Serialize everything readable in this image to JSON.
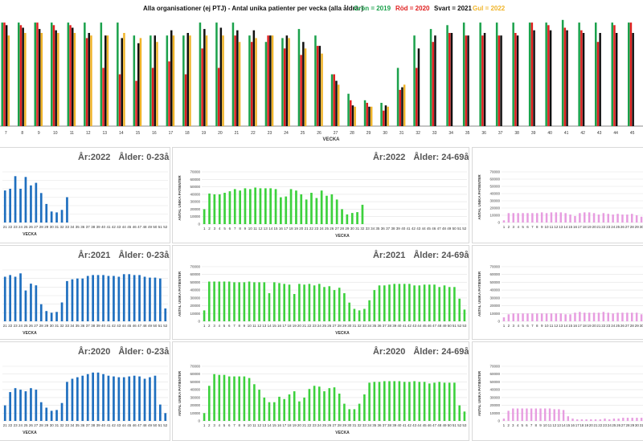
{
  "top_chart": {
    "title": "Alla organisationer (ej PTJ)   -   Antal unika patienter per vecka (alla åldrar)",
    "legend": [
      {
        "label": "Grön = 2019",
        "color": "#1aa14b"
      },
      {
        "label": "Röd = 2020",
        "color": "#e02020"
      },
      {
        "label": "Svart = 2021",
        "color": "#111111"
      },
      {
        "label": "Gul = 2022",
        "color": "#f0b429"
      }
    ],
    "xlabel": "VECKA"
  },
  "panels": [
    {
      "id": "p2022y",
      "year_label": "År:2022",
      "age_label": "Ålder: 0-23år"
    },
    {
      "id": "p2022m",
      "year_label": "År:2022",
      "age_label": "Ålder: 24-69år"
    },
    {
      "id": "p2021y",
      "year_label": "År:2021",
      "age_label": "Ålder: 0-23år"
    },
    {
      "id": "p2021m",
      "year_label": "År:2021",
      "age_label": "Ålder: 24-69år"
    },
    {
      "id": "p2020y",
      "year_label": "År:2020",
      "age_label": "Ålder: 0-23år"
    },
    {
      "id": "p2020m",
      "year_label": "År:2020",
      "age_label": "Ålder: 24-69år"
    }
  ],
  "chart_data": [
    {
      "type": "bar",
      "title": "Alla organisationer (ej PTJ)   -   Antal unika patienter per vecka (alla åldrar)",
      "xlabel": "VECKA",
      "categories": [
        "7",
        "8",
        "9",
        "10",
        "11",
        "12",
        "13",
        "14",
        "15",
        "16",
        "17",
        "18",
        "19",
        "20",
        "21",
        "22",
        "23",
        "24",
        "25",
        "26",
        "27",
        "28",
        "29",
        "30",
        "31",
        "32",
        "33",
        "34",
        "35",
        "36",
        "37",
        "38",
        "39",
        "40",
        "41",
        "42",
        "43",
        "44",
        "45"
      ],
      "series": [
        {
          "name": "Grön = 2019",
          "color": "#1aa14b",
          "values": [
            80,
            80,
            80,
            80,
            80,
            80,
            80,
            80,
            70,
            70,
            70,
            70,
            80,
            80,
            80,
            70,
            65,
            68,
            75,
            70,
            40,
            25,
            20,
            18,
            45,
            70,
            75,
            78,
            80,
            80,
            80,
            80,
            80,
            80,
            82,
            80,
            80,
            80,
            80
          ]
        },
        {
          "name": "Röd = 2020",
          "color": "#e02020",
          "values": [
            80,
            78,
            80,
            78,
            78,
            68,
            45,
            40,
            35,
            45,
            50,
            40,
            60,
            45,
            70,
            65,
            70,
            60,
            55,
            62,
            40,
            20,
            18,
            12,
            28,
            45,
            65,
            72,
            70,
            70,
            70,
            72,
            80,
            78,
            76,
            74,
            65,
            78,
            80
          ]
        },
        {
          "name": "Svart = 2021",
          "color": "#111111",
          "values": [
            78,
            76,
            75,
            74,
            76,
            72,
            70,
            68,
            64,
            70,
            74,
            72,
            75,
            76,
            74,
            74,
            70,
            70,
            65,
            62,
            35,
            16,
            15,
            16,
            30,
            60,
            70,
            72,
            70,
            72,
            70,
            70,
            74,
            74,
            74,
            72,
            72,
            72,
            72
          ]
        },
        {
          "name": "Gul = 2022",
          "color": "#f0b429",
          "values": [
            70,
            72,
            72,
            72,
            72,
            70,
            70,
            72,
            68,
            65,
            70,
            70,
            70,
            70,
            65,
            68,
            70,
            68,
            60,
            56,
            32,
            15,
            15,
            15,
            32,
            0,
            0,
            0,
            0,
            0,
            0,
            0,
            0,
            0,
            0,
            0,
            0,
            0,
            0
          ]
        }
      ],
      "legend": "top"
    },
    {
      "type": "bar",
      "title": "År:2022   Ålder: 0-23år",
      "xlabel": "VECKA",
      "ylim": [
        0,
        60000
      ],
      "categories": [
        "21",
        "22",
        "23",
        "24",
        "25",
        "26",
        "27",
        "28",
        "29",
        "30",
        "31",
        "32",
        "33",
        "34",
        "35",
        "36",
        "37",
        "38",
        "39",
        "40",
        "41",
        "42",
        "43",
        "44",
        "45",
        "46",
        "47",
        "48",
        "49",
        "50",
        "51",
        "52"
      ],
      "values": [
        38000,
        40000,
        55000,
        40000,
        54000,
        44000,
        47000,
        35000,
        22000,
        13000,
        12000,
        15000,
        30000,
        0,
        0,
        0,
        0,
        0,
        0,
        0,
        0,
        0,
        0,
        0,
        0,
        0,
        0,
        0,
        0,
        0,
        0,
        0
      ],
      "color": "#1f6fbf"
    },
    {
      "type": "bar",
      "title": "År:2022   Ålder: 24-69år",
      "xlabel": "VECKA",
      "ylabel": "ANTAL UNIKA PATIENTER",
      "ylim": [
        0,
        70000
      ],
      "categories": [
        "1",
        "2",
        "3",
        "4",
        "5",
        "6",
        "7",
        "8",
        "9",
        "10",
        "11",
        "12",
        "13",
        "14",
        "15",
        "16",
        "17",
        "18",
        "19",
        "20",
        "21",
        "22",
        "23",
        "24",
        "25",
        "26",
        "27",
        "28",
        "29",
        "30",
        "31",
        "32",
        "33",
        "34",
        "35",
        "36",
        "37",
        "38",
        "39",
        "40",
        "41",
        "42",
        "43",
        "44",
        "45",
        "46",
        "47",
        "48",
        "49",
        "50",
        "51",
        "52"
      ],
      "values": [
        20000,
        41000,
        40000,
        40000,
        42000,
        44000,
        47000,
        45000,
        48000,
        47000,
        49000,
        48000,
        48000,
        48000,
        47000,
        36000,
        37000,
        47000,
        45000,
        40000,
        33000,
        42000,
        35000,
        45000,
        38000,
        40000,
        33000,
        20000,
        13000,
        15000,
        16000,
        26000,
        0,
        0,
        0,
        0,
        0,
        0,
        0,
        0,
        0,
        0,
        0,
        0,
        0,
        0,
        0,
        0,
        0,
        0,
        0,
        0
      ],
      "color": "#3dd13d"
    },
    {
      "type": "bar",
      "title": "År:2021   Ålder: 0-23år",
      "xlabel": "VECKA",
      "ylim": [
        0,
        60000
      ],
      "categories": [
        "21",
        "22",
        "23",
        "24",
        "25",
        "26",
        "27",
        "28",
        "29",
        "30",
        "31",
        "32",
        "33",
        "34",
        "35",
        "36",
        "37",
        "38",
        "39",
        "40",
        "41",
        "42",
        "43",
        "44",
        "45",
        "46",
        "47",
        "48",
        "49",
        "50",
        "51",
        "52"
      ],
      "values": [
        52000,
        54000,
        52000,
        56000,
        36000,
        44000,
        42000,
        20000,
        12000,
        10000,
        11000,
        22000,
        47000,
        49000,
        50000,
        50000,
        53000,
        54000,
        54000,
        54000,
        53000,
        53000,
        52000,
        55000,
        55000,
        54000,
        54000,
        52000,
        51000,
        51000,
        50000,
        15000
      ],
      "color": "#1f6fbf"
    },
    {
      "type": "bar",
      "title": "År:2021   Ålder: 24-69år",
      "xlabel": "VECKA",
      "ylabel": "ANTAL UNIKA PATIENTER",
      "ylim": [
        0,
        70000
      ],
      "categories": [
        "1",
        "2",
        "3",
        "4",
        "5",
        "6",
        "7",
        "8",
        "9",
        "10",
        "11",
        "12",
        "13",
        "14",
        "15",
        "16",
        "17",
        "18",
        "19",
        "20",
        "21",
        "22",
        "23",
        "24",
        "25",
        "26",
        "27",
        "28",
        "29",
        "30",
        "31",
        "32",
        "33",
        "34",
        "35",
        "36",
        "37",
        "38",
        "39",
        "40",
        "41",
        "42",
        "43",
        "44",
        "45",
        "46",
        "47",
        "48",
        "49",
        "50",
        "51",
        "52",
        "53"
      ],
      "values": [
        14000,
        51000,
        51000,
        51000,
        51000,
        51000,
        50000,
        50000,
        50000,
        51000,
        50000,
        50000,
        50000,
        36000,
        50000,
        49000,
        48000,
        47000,
        35000,
        48000,
        47000,
        48000,
        46000,
        48000,
        44000,
        45000,
        40000,
        43000,
        36000,
        24000,
        16000,
        14000,
        16000,
        27000,
        40000,
        46000,
        46000,
        47000,
        48000,
        48000,
        48000,
        48000,
        46000,
        46000,
        47000,
        47000,
        47000,
        44000,
        46000,
        44000,
        44000,
        29000,
        15000
      ],
      "color": "#3dd13d"
    },
    {
      "type": "bar",
      "title": "År:2020   Ålder: 0-23år",
      "xlabel": "VECKA",
      "ylim": [
        0,
        70000
      ],
      "categories": [
        "21",
        "22",
        "23",
        "24",
        "25",
        "26",
        "27",
        "28",
        "29",
        "30",
        "31",
        "32",
        "33",
        "34",
        "35",
        "36",
        "37",
        "38",
        "39",
        "40",
        "41",
        "42",
        "43",
        "44",
        "45",
        "46",
        "47",
        "48",
        "49",
        "50",
        "51",
        "52"
      ],
      "values": [
        20000,
        37000,
        42000,
        40000,
        38000,
        42000,
        40000,
        24000,
        17000,
        13000,
        14000,
        23000,
        50000,
        54000,
        56000,
        58000,
        60000,
        62000,
        62000,
        60000,
        58000,
        57000,
        56000,
        56000,
        57000,
        58000,
        57000,
        54000,
        56000,
        58000,
        21000,
        10000
      ],
      "color": "#1f6fbf"
    },
    {
      "type": "bar",
      "title": "År:2020   Ålder: 24-69år",
      "xlabel": "VECKA",
      "ylabel": "ANTAL UNIKA PATIENTER",
      "ylim": [
        0,
        70000
      ],
      "categories": [
        "1",
        "2",
        "3",
        "4",
        "5",
        "6",
        "7",
        "8",
        "9",
        "10",
        "11",
        "12",
        "13",
        "14",
        "15",
        "16",
        "17",
        "18",
        "19",
        "20",
        "21",
        "22",
        "23",
        "24",
        "25",
        "26",
        "27",
        "28",
        "29",
        "30",
        "31",
        "32",
        "33",
        "34",
        "35",
        "36",
        "37",
        "38",
        "39",
        "40",
        "41",
        "42",
        "43",
        "44",
        "45",
        "46",
        "47",
        "48",
        "49",
        "50",
        "51",
        "52",
        "53"
      ],
      "values": [
        10000,
        45000,
        60000,
        59000,
        59000,
        57000,
        57000,
        57000,
        57000,
        55000,
        47000,
        40000,
        30000,
        24000,
        24000,
        31000,
        28000,
        34000,
        38000,
        25000,
        30000,
        41000,
        45000,
        44000,
        38000,
        42000,
        43000,
        35000,
        22000,
        15000,
        15000,
        22000,
        34000,
        49000,
        50000,
        50000,
        51000,
        51000,
        51000,
        51000,
        50000,
        50000,
        51000,
        50000,
        50000,
        48000,
        49000,
        50000,
        49000,
        49000,
        49000,
        20000,
        12000
      ],
      "color": "#3dd13d"
    },
    {
      "type": "bar",
      "title": "",
      "ylabel": "ANTAL UNIKA PATIENTER",
      "ylim": [
        0,
        70000
      ],
      "categories": [
        "1",
        "2",
        "3",
        "4",
        "5",
        "6",
        "7",
        "8",
        "9",
        "10",
        "11",
        "12",
        "13",
        "14",
        "15",
        "16",
        "17",
        "18",
        "19",
        "20",
        "21",
        "22",
        "23",
        "24",
        "25",
        "26",
        "27",
        "28",
        "29",
        "30"
      ],
      "values": [
        3000,
        13000,
        13000,
        13000,
        13000,
        13000,
        13000,
        13000,
        14000,
        13000,
        14000,
        14000,
        14000,
        13000,
        11000,
        9000,
        13000,
        14000,
        14000,
        13000,
        11000,
        13000,
        12000,
        11000,
        12000,
        11000,
        11000,
        12000,
        10000,
        8000
      ],
      "color": "#e79de0"
    },
    {
      "type": "bar",
      "title": "",
      "ylabel": "ANTAL UNIKA PATIENTER",
      "ylim": [
        0,
        70000
      ],
      "categories": [
        "1",
        "2",
        "3",
        "4",
        "5",
        "6",
        "7",
        "8",
        "9",
        "10",
        "11",
        "12",
        "13",
        "14",
        "15",
        "16",
        "17",
        "18",
        "19",
        "20",
        "21",
        "22",
        "23",
        "24",
        "25",
        "26",
        "27",
        "28",
        "29",
        "30"
      ],
      "values": [
        5000,
        9000,
        10000,
        10000,
        10000,
        10000,
        10000,
        10000,
        10000,
        10000,
        10000,
        10000,
        10000,
        9000,
        9000,
        11000,
        12000,
        11000,
        11000,
        11000,
        11000,
        12000,
        11000,
        10000,
        11000,
        11000,
        11000,
        11000,
        11000,
        9000
      ],
      "color": "#e79de0"
    },
    {
      "type": "bar",
      "title": "",
      "ylabel": "ANTAL UNIKA PATIENTER",
      "ylim": [
        0,
        70000
      ],
      "categories": [
        "1",
        "2",
        "3",
        "4",
        "5",
        "6",
        "7",
        "8",
        "9",
        "10",
        "11",
        "12",
        "13",
        "14",
        "15",
        "16",
        "17",
        "18",
        "19",
        "20",
        "21",
        "22",
        "23",
        "24",
        "25",
        "26",
        "27",
        "28",
        "29",
        "30",
        "31"
      ],
      "values": [
        3000,
        13000,
        16000,
        16000,
        16000,
        16000,
        16000,
        16000,
        16000,
        16000,
        16000,
        15000,
        15000,
        14000,
        6000,
        3000,
        2000,
        2000,
        2000,
        2000,
        2000,
        2000,
        3000,
        2000,
        3000,
        3000,
        4000,
        4000,
        4000,
        4000,
        4000
      ],
      "color": "#e79de0"
    }
  ]
}
